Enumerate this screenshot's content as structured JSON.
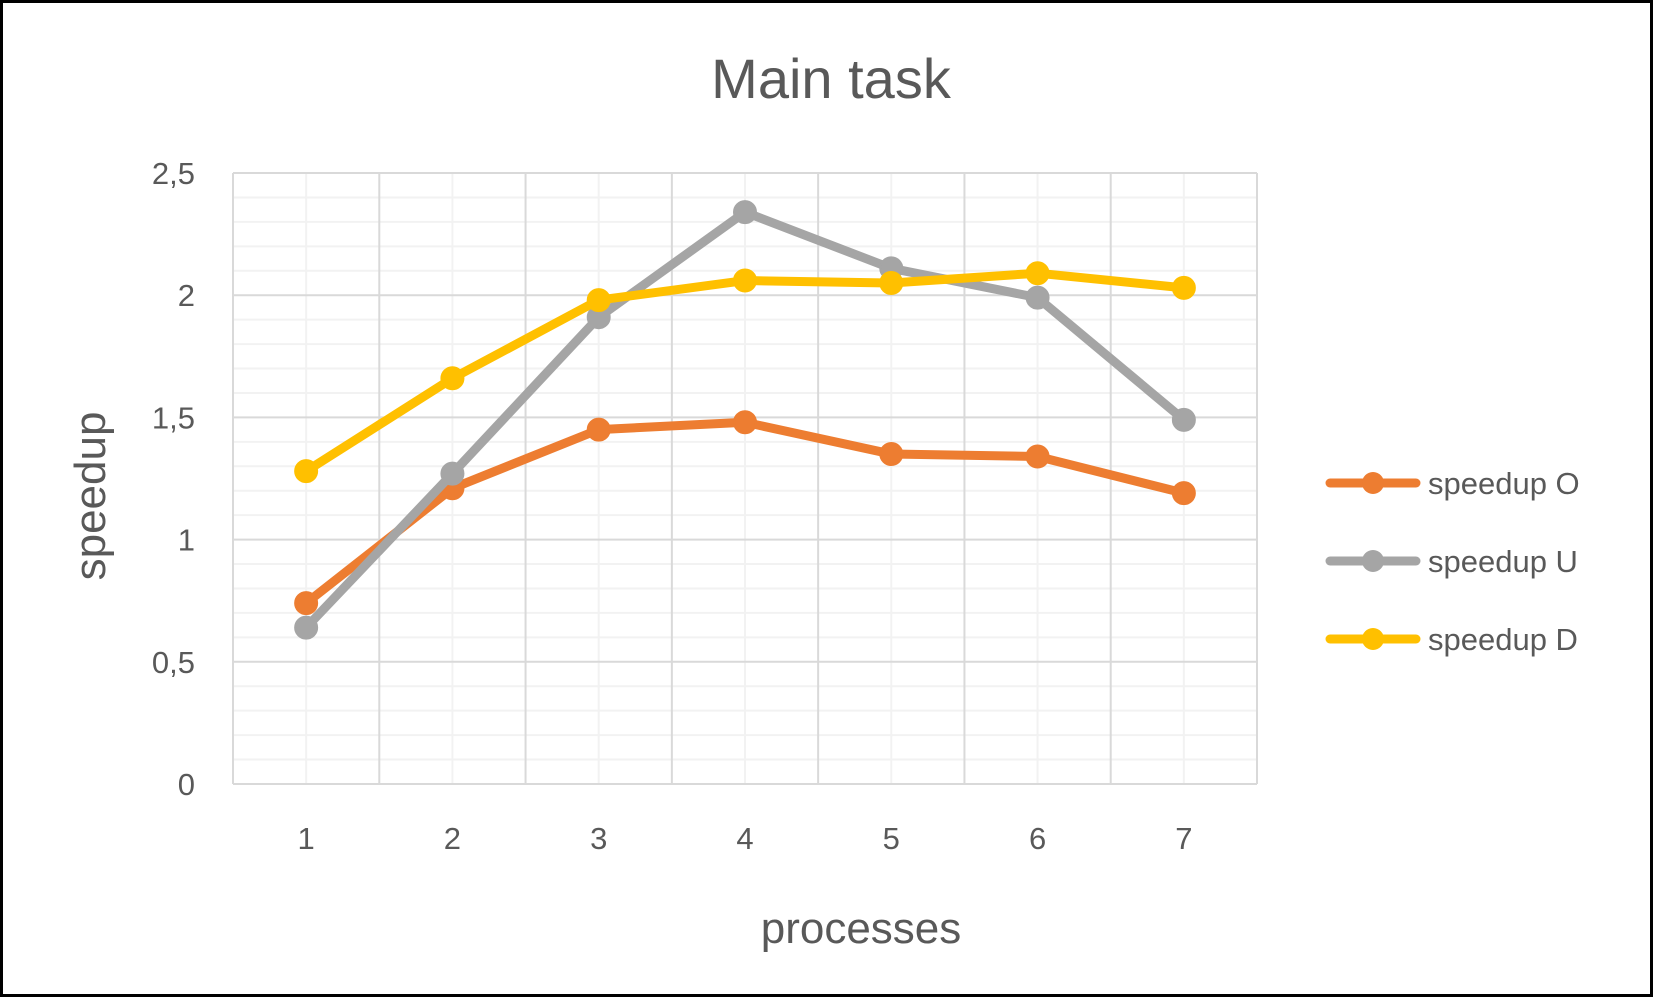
{
  "chart_data": {
    "type": "line",
    "title": "Main task",
    "xlabel": "processes",
    "ylabel": "speedup",
    "categories": [
      "1",
      "2",
      "3",
      "4",
      "5",
      "6",
      "7"
    ],
    "ylim": [
      0,
      2.5
    ],
    "y_ticks": [
      0,
      0.5,
      1,
      1.5,
      2,
      2.5
    ],
    "y_tick_labels": [
      "0",
      "0,5",
      "1",
      "1,5",
      "2",
      "2,5"
    ],
    "grid": true,
    "legend_position": "right",
    "series": [
      {
        "name": "speedup O",
        "color": "#ED7D31",
        "values": [
          0.74,
          1.21,
          1.45,
          1.48,
          1.35,
          1.34,
          1.19
        ]
      },
      {
        "name": "speedup U",
        "color": "#A5A5A5",
        "values": [
          0.64,
          1.27,
          1.91,
          2.34,
          2.11,
          1.99,
          1.49
        ]
      },
      {
        "name": "speedup D",
        "color": "#FFC000",
        "values": [
          1.28,
          1.66,
          1.98,
          2.06,
          2.05,
          2.09,
          2.03
        ]
      }
    ]
  }
}
